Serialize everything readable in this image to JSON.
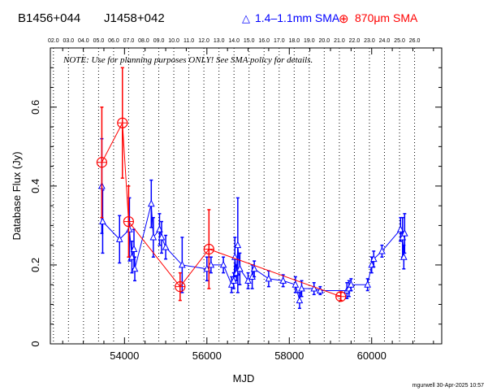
{
  "chart_data": {
    "type": "scatter",
    "title_left": "B1456+044",
    "title_mid": "J1458+042",
    "legend": [
      {
        "name": "1.4–1.1mm SMA",
        "marker": "△",
        "color": "#0000ff"
      },
      {
        "name": "870μm SMA",
        "marker": "⊕",
        "color": "#ff0000"
      }
    ],
    "note": "NOTE: Use for planning purposes ONLY! See SMA policy for details.",
    "xlabel": "MJD",
    "ylabel": "Database Flux (Jy)",
    "footer": "mgurwell 30-Apr-2025 10:57",
    "xlim": [
      52200,
      61700
    ],
    "ylim": [
      0,
      0.75
    ],
    "x_ticks": [
      54000,
      56000,
      58000,
      60000
    ],
    "x_tick_labels": [
      "54000",
      "56000",
      "58000",
      "60000"
    ],
    "y_ticks": [
      0,
      0.2,
      0.4,
      0.6
    ],
    "y_tick_labels": [
      "0",
      "0.2",
      "0.4",
      "0.6"
    ],
    "top_axis": {
      "labels": [
        "02.0",
        "03.0",
        "04.0",
        "05.0",
        "06.0",
        "07.0",
        "08.0",
        "09.0",
        "10.0",
        "11.0",
        "12.0",
        "13.0",
        "14.0",
        "15.0",
        "16.0",
        "17.0",
        "18.0",
        "19.0",
        "20.0",
        "21.0",
        "22.0",
        "23.0",
        "24.0",
        "25.0",
        "26.0"
      ],
      "mjd": [
        52275,
        52640,
        53005,
        53371,
        53736,
        54101,
        54466,
        54832,
        55197,
        55562,
        55927,
        56293,
        56658,
        57023,
        57388,
        57754,
        58119,
        58484,
        58849,
        59215,
        59580,
        59945,
        60310,
        60676,
        61041
      ]
    },
    "series": [
      {
        "name": "1.4–1.1mm SMA",
        "color": "#0000ff",
        "marker": "triangle",
        "x": [
          53450,
          53470,
          53880,
          54120,
          54180,
          54230,
          54250,
          54650,
          54700,
          54850,
          54900,
          55000,
          55400,
          56000,
          56100,
          56400,
          56600,
          56650,
          56680,
          56720,
          56750,
          56800,
          57000,
          57100,
          57150,
          57500,
          57850,
          58150,
          58250,
          58300,
          58600,
          58750,
          59400,
          59450,
          59500,
          59900,
          60000,
          60050,
          60250,
          60700,
          60750,
          60780,
          60800
        ],
        "y": [
          0.4,
          0.31,
          0.265,
          0.29,
          0.22,
          0.24,
          0.19,
          0.355,
          0.27,
          0.29,
          0.27,
          0.245,
          0.2,
          0.19,
          0.2,
          0.2,
          0.15,
          0.16,
          0.22,
          0.18,
          0.25,
          0.19,
          0.16,
          0.17,
          0.19,
          0.165,
          0.16,
          0.15,
          0.11,
          0.14,
          0.14,
          0.135,
          0.135,
          0.14,
          0.15,
          0.15,
          0.2,
          0.215,
          0.235,
          0.29,
          0.27,
          0.22,
          0.28
        ],
        "err": [
          0.12,
          0.08,
          0.06,
          0.08,
          0.04,
          0.05,
          0.03,
          0.06,
          0.05,
          0.04,
          0.04,
          0.03,
          0.07,
          0.03,
          0.02,
          0.02,
          0.02,
          0.02,
          0.05,
          0.02,
          0.12,
          0.04,
          0.02,
          0.03,
          0.02,
          0.02,
          0.015,
          0.02,
          0.02,
          0.02,
          0.015,
          0.01,
          0.02,
          0.02,
          0.015,
          0.015,
          0.02,
          0.02,
          0.015,
          0.03,
          0.05,
          0.03,
          0.05
        ]
      },
      {
        "name": "870μm SMA",
        "color": "#ff0000",
        "marker": "circle-plus",
        "x": [
          53450,
          53950,
          54100,
          55350,
          56050,
          59250
        ],
        "y": [
          0.46,
          0.56,
          0.31,
          0.145,
          0.24,
          0.12
        ],
        "err": [
          0.14,
          0.14,
          0.09,
          0.035,
          0.1,
          0.01
        ]
      }
    ]
  }
}
